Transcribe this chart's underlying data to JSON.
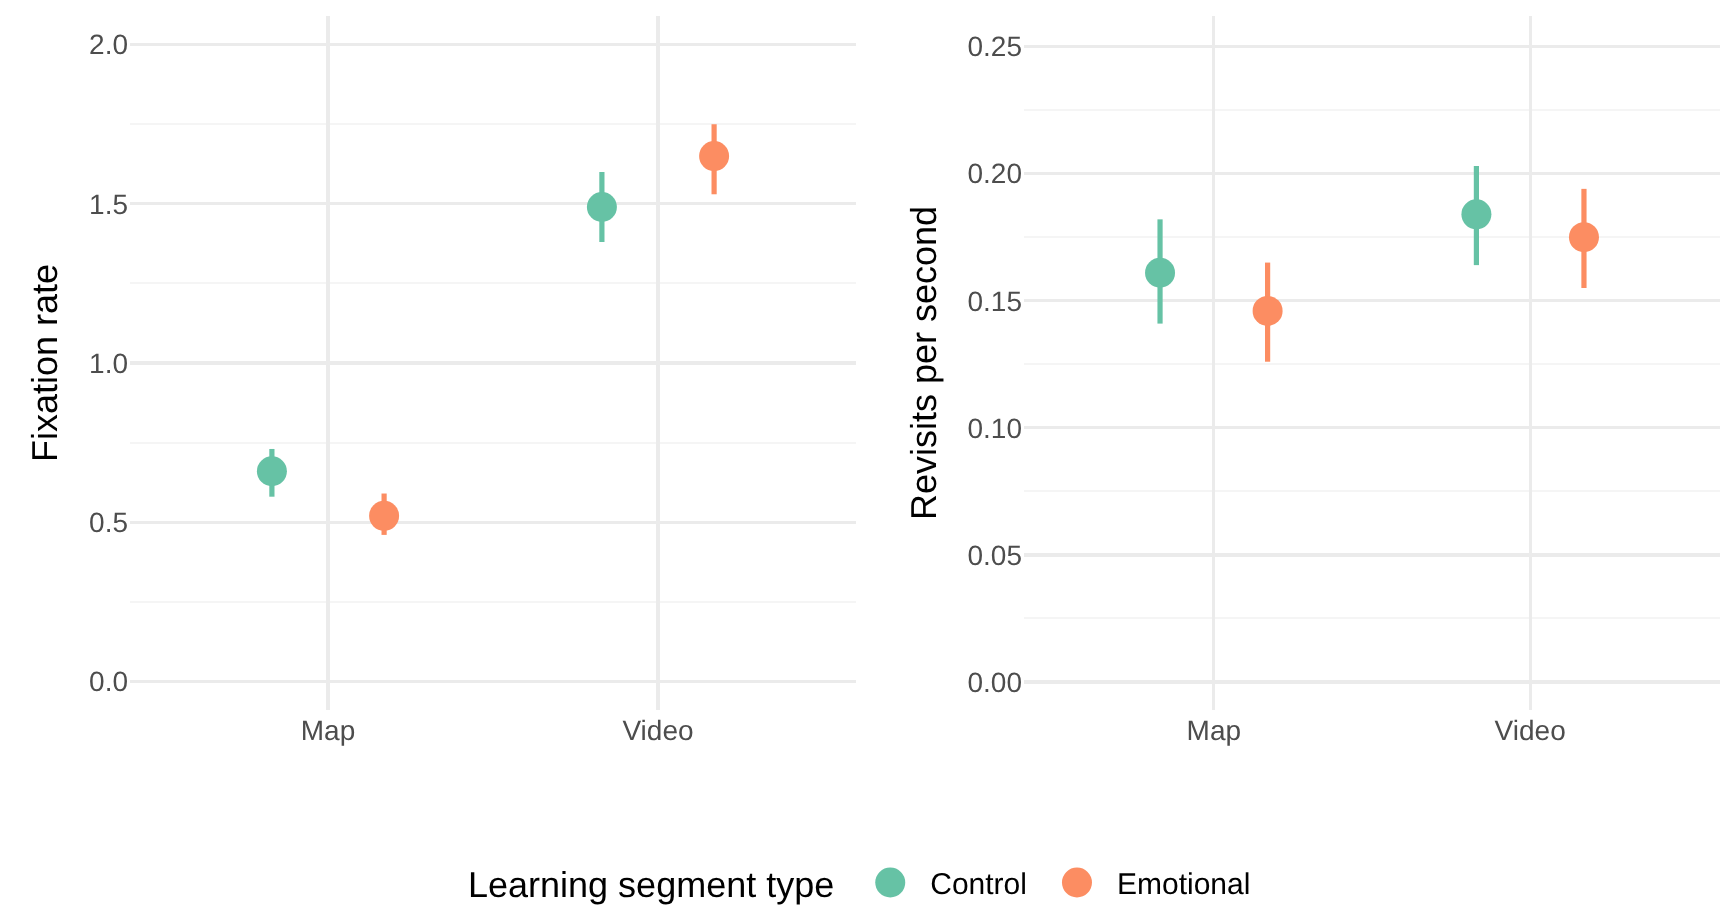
{
  "chart_data": [
    {
      "type": "scatter",
      "categories": [
        "Map",
        "Video"
      ],
      "ylabel": "Fixation rate",
      "ylim": [
        -0.09,
        2.09
      ],
      "yticks": [
        {
          "value": 0,
          "label": "0.0"
        },
        0.5,
        {
          "value": 1,
          "label": "1.0"
        },
        1.5,
        {
          "value": 2,
          "label": "2.0"
        }
      ],
      "grid": true,
      "marker": "circle",
      "legend": "bottom",
      "legend_title": "Learning segment type",
      "series": [
        {
          "name": "Control",
          "color": "#66c2a5",
          "values": [
            0.66,
            1.49
          ],
          "errors": [
            [
              0.58,
              0.73
            ],
            [
              1.38,
              1.6
            ]
          ]
        },
        {
          "name": "Emotional",
          "color": "#fc8d62",
          "values": [
            0.52,
            1.65
          ],
          "errors": [
            [
              0.46,
              0.59
            ],
            [
              1.53,
              1.75
            ]
          ]
        }
      ]
    },
    {
      "type": "scatter",
      "categories": [
        "Map",
        "Video"
      ],
      "ylabel": "Revisits per second",
      "ylim": [
        -0.011,
        0.262
      ],
      "yticks": [
        {
          "value": 0,
          "label": "0.00"
        },
        0.05,
        {
          "value": 0.1,
          "label": "0.10"
        },
        0.15,
        {
          "value": 0.2,
          "label": "0.20"
        },
        0.25
      ],
      "grid": true,
      "marker": "circle",
      "series": [
        {
          "color": "#66c2a5",
          "values": [
            0.161,
            0.184
          ],
          "errors": [
            [
              0.141,
              0.182
            ],
            [
              0.164,
              0.203
            ]
          ]
        },
        {
          "color": "#fc8d62",
          "values": [
            0.146,
            0.175
          ],
          "errors": [
            [
              0.126,
              0.165
            ],
            [
              0.155,
              0.194
            ]
          ]
        }
      ]
    }
  ]
}
